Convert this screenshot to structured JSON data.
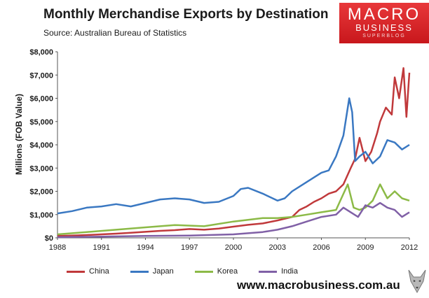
{
  "header": {
    "title": "Monthly Merchandise Exports by Destination",
    "source": "Source:  Australian Bureau of Statistics"
  },
  "logo": {
    "line1": "MACRO",
    "line2": "BUSINESS",
    "line3": "SUPERBLOG"
  },
  "footer": {
    "url": "www.macrobusiness.com.au"
  },
  "chart_data": {
    "type": "line",
    "title": "Monthly Merchandise Exports by Destination",
    "subtitle": "Source:  Australian Bureau of Statistics",
    "xlabel": "",
    "ylabel": "Millions (FOB Value)",
    "xlim": [
      1988,
      2012
    ],
    "ylim": [
      0,
      8000
    ],
    "x_ticks": [
      1988,
      1991,
      1994,
      1997,
      2000,
      2003,
      2006,
      2009,
      2012
    ],
    "y_ticks": [
      0,
      1000,
      2000,
      3000,
      4000,
      5000,
      6000,
      7000,
      8000
    ],
    "y_tick_labels": [
      "$0",
      "$1,000",
      "$2,000",
      "$3,000",
      "$4,000",
      "$5,000",
      "$6,000",
      "$7,000",
      "$8,000"
    ],
    "grid": false,
    "legend_position": "bottom",
    "series": [
      {
        "name": "China",
        "color": "#c0393b",
        "x": [
          1988,
          1989,
          1990,
          1991,
          1992,
          1993,
          1994,
          1995,
          1996,
          1997,
          1998,
          1999,
          2000,
          2001,
          2002,
          2003,
          2004,
          2004.5,
          2005,
          2005.5,
          2006,
          2006.5,
          2007,
          2007.5,
          2008,
          2008.3,
          2008.6,
          2009,
          2009.4,
          2009.8,
          2010,
          2010.4,
          2010.8,
          2011,
          2011.3,
          2011.6,
          2011.8,
          2012
        ],
        "y": [
          80,
          100,
          120,
          150,
          180,
          220,
          260,
          300,
          330,
          380,
          350,
          400,
          480,
          560,
          620,
          750,
          900,
          1200,
          1350,
          1550,
          1700,
          1900,
          2000,
          2300,
          3000,
          3400,
          4300,
          3300,
          3700,
          4500,
          5000,
          5600,
          5300,
          6900,
          6000,
          7300,
          5200,
          7100
        ]
      },
      {
        "name": "Japan",
        "color": "#3a78c2",
        "x": [
          1988,
          1989,
          1990,
          1991,
          1992,
          1993,
          1994,
          1995,
          1996,
          1997,
          1998,
          1999,
          2000,
          2000.5,
          2001,
          2002,
          2003,
          2003.5,
          2004,
          2005,
          2005.5,
          2006,
          2006.5,
          2007,
          2007.5,
          2007.9,
          2008.1,
          2008.3,
          2008.6,
          2009,
          2009.5,
          2010,
          2010.5,
          2011,
          2011.5,
          2012
        ],
        "y": [
          1050,
          1150,
          1300,
          1350,
          1450,
          1350,
          1500,
          1650,
          1700,
          1650,
          1500,
          1550,
          1800,
          2100,
          2150,
          1900,
          1600,
          1700,
          2000,
          2400,
          2600,
          2800,
          2900,
          3500,
          4400,
          6000,
          5400,
          3300,
          3500,
          3700,
          3200,
          3500,
          4200,
          4100,
          3800,
          4000
        ]
      },
      {
        "name": "Korea",
        "color": "#8cba47",
        "x": [
          1988,
          1990,
          1992,
          1994,
          1996,
          1998,
          2000,
          2002,
          2003,
          2004,
          2005,
          2006,
          2007,
          2007.8,
          2008.2,
          2008.6,
          2009,
          2009.5,
          2010,
          2010.5,
          2011,
          2011.5,
          2012
        ],
        "y": [
          150,
          250,
          350,
          450,
          550,
          500,
          700,
          850,
          850,
          900,
          1000,
          1100,
          1200,
          2300,
          1300,
          1200,
          1300,
          1600,
          2300,
          1700,
          2000,
          1700,
          1600
        ]
      },
      {
        "name": "India",
        "color": "#8060a6",
        "x": [
          1988,
          1991,
          1994,
          1997,
          2000,
          2002,
          2003,
          2004,
          2005,
          2006,
          2007,
          2007.5,
          2008,
          2008.5,
          2009,
          2009.5,
          2010,
          2010.5,
          2011,
          2011.5,
          2012
        ],
        "y": [
          30,
          50,
          80,
          100,
          150,
          250,
          350,
          500,
          700,
          900,
          1000,
          1300,
          1100,
          900,
          1400,
          1300,
          1500,
          1300,
          1200,
          900,
          1100
        ]
      }
    ]
  }
}
